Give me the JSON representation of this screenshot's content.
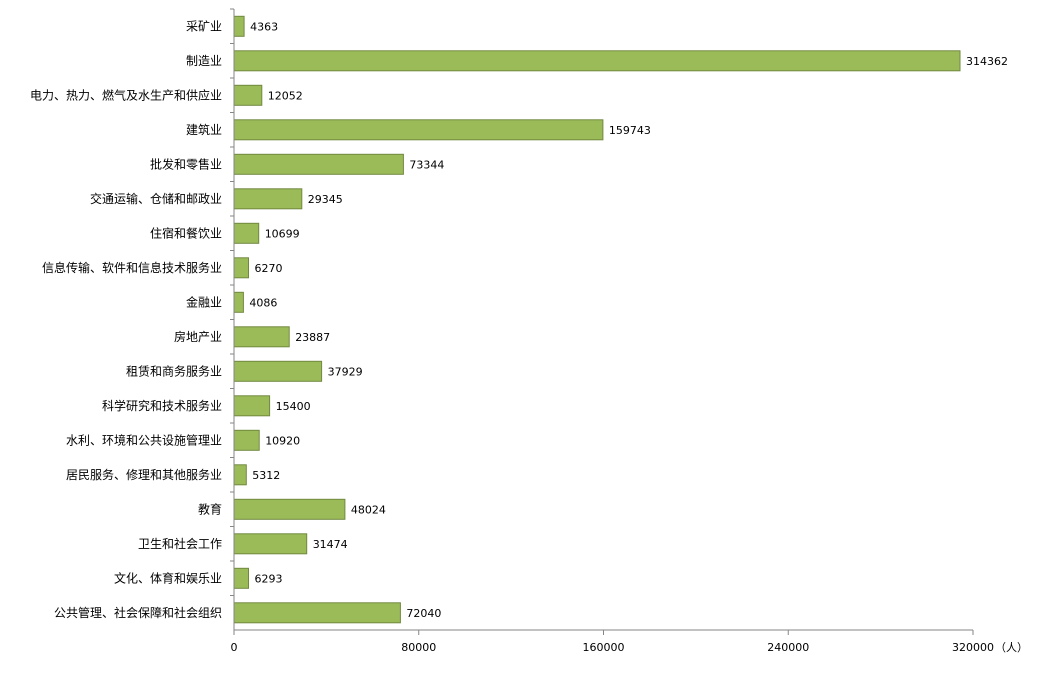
{
  "chart_data": {
    "type": "bar",
    "orientation": "horizontal",
    "categories": [
      "采矿业",
      "制造业",
      "电力、热力、燃气及水生产和供应业",
      "建筑业",
      "批发和零售业",
      "交通运输、仓储和邮政业",
      "住宿和餐饮业",
      "信息传输、软件和信息技术服务业",
      "金融业",
      "房地产业",
      "租赁和商务服务业",
      "科学研究和技术服务业",
      "水利、环境和公共设施管理业",
      "居民服务、修理和其他服务业",
      "教育",
      "卫生和社会工作",
      "文化、体育和娱乐业",
      "公共管理、社会保障和社会组织"
    ],
    "values": [
      4363,
      314362,
      12052,
      159743,
      73344,
      29345,
      10699,
      6270,
      4086,
      23887,
      37929,
      15400,
      10920,
      5312,
      48024,
      31474,
      6293,
      72040
    ],
    "value_labels": [
      "4363",
      "314362",
      "12052",
      "159743",
      "73344",
      "29345",
      "10699",
      "6270",
      "4086",
      "23887",
      "37929",
      "15400",
      "10920",
      "5312",
      "48024",
      "31474",
      "6293",
      "72040"
    ],
    "xlim": [
      0,
      320000
    ],
    "xticks": [
      0,
      80000,
      160000,
      240000,
      320000
    ],
    "xtick_labels": [
      "0",
      "80000",
      "160000",
      "240000",
      "320000"
    ],
    "unit": "（人）",
    "grid": false,
    "colors": {
      "bar_fill": "#9bbb59",
      "bar_stroke": "#71893f",
      "axis": "#868686"
    }
  }
}
